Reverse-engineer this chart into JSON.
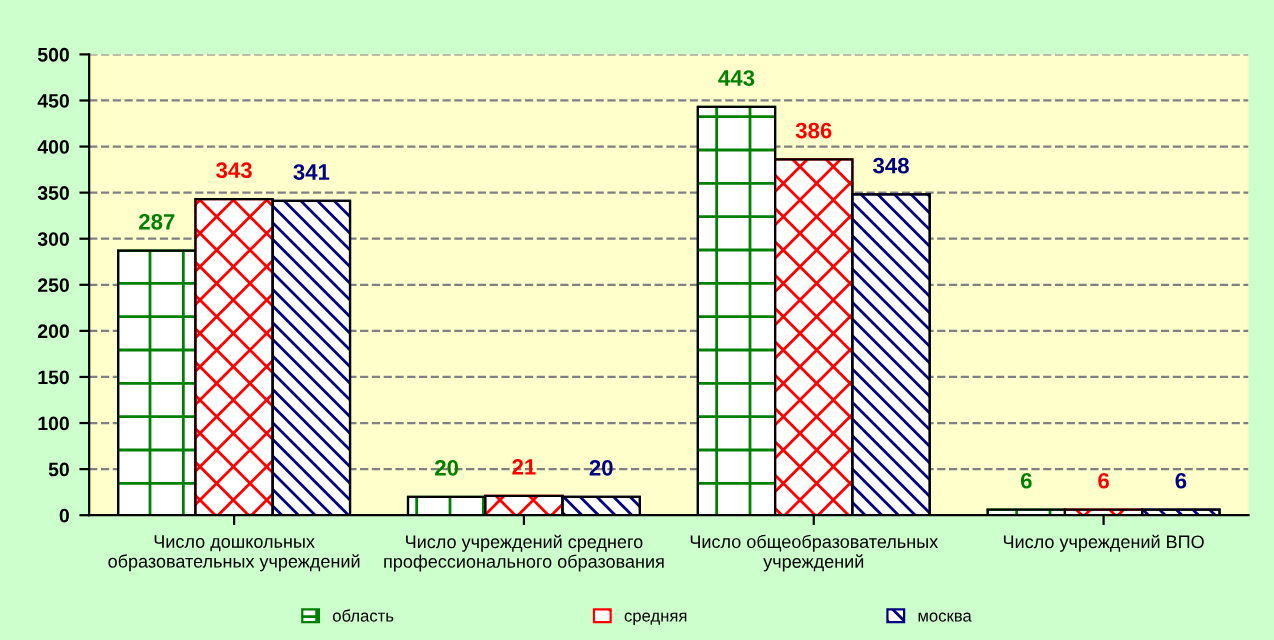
{
  "chart_data": {
    "type": "bar",
    "categories": [
      "Число дошкольных образовательных учреждений",
      "Число учреждений среднего профессионального образования",
      "Число общеобразовательных учреждений",
      "Число учреждений ВПО"
    ],
    "series": [
      {
        "name": "область",
        "color": "#008000",
        "values": [
          287,
          20,
          443,
          6
        ]
      },
      {
        "name": "средняя",
        "color": "#ff0000",
        "values": [
          343,
          21,
          386,
          6
        ]
      },
      {
        "name": "москва",
        "color": "#000080",
        "values": [
          341,
          20,
          348,
          6
        ]
      }
    ],
    "ylim": [
      0,
      500
    ],
    "yticks": [
      0,
      50,
      100,
      150,
      200,
      250,
      300,
      350,
      400,
      450,
      500
    ],
    "grid": "y",
    "legend": "bottom",
    "data_labels": true
  }
}
